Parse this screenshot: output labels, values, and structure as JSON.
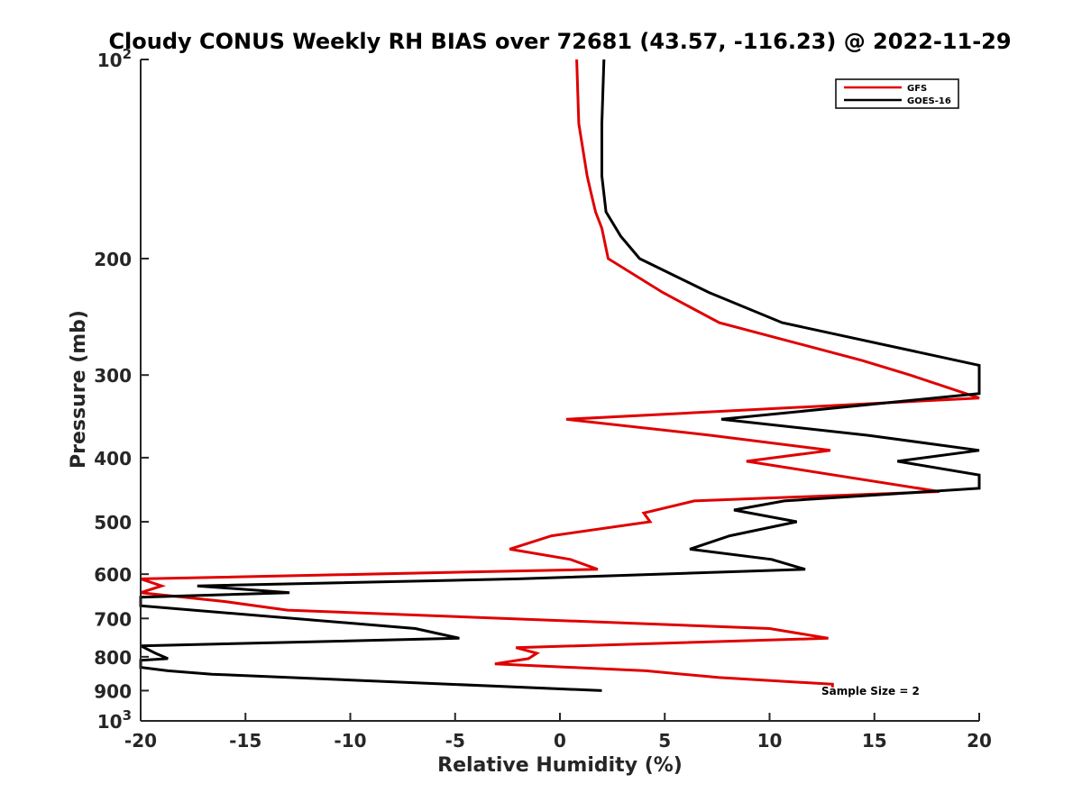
{
  "chart_data": {
    "type": "line",
    "title": "Cloudy CONUS Weekly RH BIAS over 72681 (43.57, -116.23) @ 2022-11-29",
    "xlabel": "Relative Humidity (%)",
    "ylabel": "Pressure (mb)",
    "xlim": [
      -20,
      20
    ],
    "ylim": [
      100,
      1000
    ],
    "yscale": "log",
    "y_reversed": true,
    "grid": false,
    "legend_position": "top-right",
    "x_ticks": [
      -20,
      -15,
      -10,
      -5,
      0,
      5,
      10,
      15,
      20
    ],
    "x_tick_labels": [
      "-20",
      "-15",
      "-10",
      "-5",
      "0",
      "5",
      "10",
      "15",
      "20"
    ],
    "y_ticks": [
      100,
      200,
      300,
      400,
      500,
      600,
      700,
      800,
      900,
      1000
    ],
    "y_tick_labels": [
      {
        "base": "10",
        "exp": "2"
      },
      {
        "base": "200",
        "exp": ""
      },
      {
        "base": "300",
        "exp": ""
      },
      {
        "base": "400",
        "exp": ""
      },
      {
        "base": "500",
        "exp": ""
      },
      {
        "base": "600",
        "exp": ""
      },
      {
        "base": "700",
        "exp": ""
      },
      {
        "base": "800",
        "exp": ""
      },
      {
        "base": "900",
        "exp": ""
      },
      {
        "base": "10",
        "exp": "3"
      }
    ],
    "annotation": "Sample Size = 2",
    "series": [
      {
        "name": "GFS",
        "color": "#e00000",
        "points": [
          [
            0.8,
            100
          ],
          [
            0.9,
            125
          ],
          [
            1.3,
            150
          ],
          [
            1.5,
            160
          ],
          [
            1.7,
            170
          ],
          [
            2.0,
            180
          ],
          [
            2.3,
            200
          ],
          [
            4.9,
            225
          ],
          [
            7.6,
            250
          ],
          [
            14.4,
            285
          ],
          [
            16.7,
            300
          ],
          [
            20.0,
            325
          ],
          [
            0.3,
            350
          ],
          [
            7.2,
            370
          ],
          [
            12.9,
            390
          ],
          [
            8.9,
            405
          ],
          [
            18.1,
            450
          ],
          [
            6.4,
            465
          ],
          [
            4.0,
            485
          ],
          [
            4.3,
            500
          ],
          [
            -0.4,
            525
          ],
          [
            -2.4,
            550
          ],
          [
            0.5,
            570
          ],
          [
            1.8,
            590
          ],
          [
            -20.0,
            610
          ],
          [
            -19.0,
            625
          ],
          [
            -20.0,
            640
          ],
          [
            -16.0,
            660
          ],
          [
            -13.0,
            680
          ],
          [
            10.0,
            725
          ],
          [
            12.8,
            750
          ],
          [
            -2.1,
            775
          ],
          [
            -1.1,
            790
          ],
          [
            -1.5,
            805
          ],
          [
            -3.1,
            820
          ],
          [
            4.1,
            840
          ],
          [
            7.6,
            860
          ],
          [
            13.0,
            880
          ],
          [
            13.0,
            890
          ]
        ]
      },
      {
        "name": "GOES-16",
        "color": "#000000",
        "points": [
          [
            2.1,
            100
          ],
          [
            2.0,
            125
          ],
          [
            2.0,
            150
          ],
          [
            2.2,
            170
          ],
          [
            2.9,
            185
          ],
          [
            3.8,
            200
          ],
          [
            7.1,
            225
          ],
          [
            10.6,
            250
          ],
          [
            20.0,
            290
          ],
          [
            20.0,
            320
          ],
          [
            7.7,
            350
          ],
          [
            14.7,
            370
          ],
          [
            20.0,
            390
          ],
          [
            16.1,
            405
          ],
          [
            20.0,
            425
          ],
          [
            20.0,
            445
          ],
          [
            10.7,
            465
          ],
          [
            8.3,
            480
          ],
          [
            11.3,
            500
          ],
          [
            8.1,
            525
          ],
          [
            6.2,
            550
          ],
          [
            10.1,
            570
          ],
          [
            11.7,
            590
          ],
          [
            -2.0,
            610
          ],
          [
            -17.3,
            625
          ],
          [
            -12.9,
            640
          ],
          [
            -20.0,
            650
          ],
          [
            -20.0,
            670
          ],
          [
            -6.9,
            725
          ],
          [
            -4.8,
            750
          ],
          [
            -20.0,
            770
          ],
          [
            -19.3,
            790
          ],
          [
            -18.7,
            805
          ],
          [
            -20.0,
            810
          ],
          [
            -20.0,
            830
          ],
          [
            -18.7,
            840
          ],
          [
            -16.6,
            850
          ],
          [
            2.0,
            900
          ]
        ]
      }
    ]
  }
}
